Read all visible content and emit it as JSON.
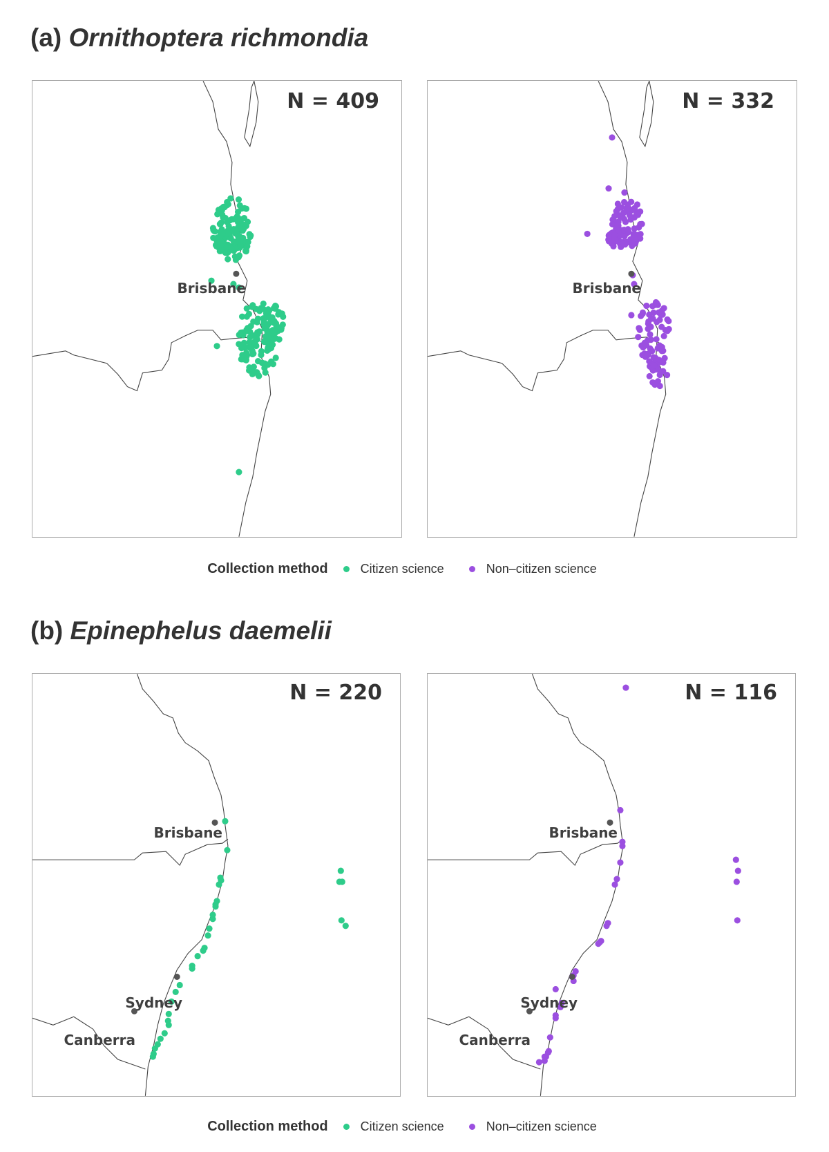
{
  "colors": {
    "citizen": "#2ecc8a",
    "non_citizen": "#9b4fe0",
    "city": "#555555",
    "coast": "#444444"
  },
  "section_a": {
    "label": "(a)",
    "species": "Ornithoptera richmondia",
    "panels": [
      {
        "n_text": "N = 409",
        "method": "Citizen science",
        "color_key": "citizen"
      },
      {
        "n_text": "N = 332",
        "method": "Non–citizen science",
        "color_key": "non_citizen"
      }
    ],
    "cities": [
      "Brisbane"
    ]
  },
  "section_b": {
    "label": "(b)",
    "species": "Epinephelus daemelii",
    "panels": [
      {
        "n_text": "N = 220",
        "method": "Citizen science",
        "color_key": "citizen"
      },
      {
        "n_text": "N = 116",
        "method": "Non–citizen science",
        "color_key": "non_citizen"
      }
    ],
    "cities": [
      "Brisbane",
      "Sydney",
      "Canberra"
    ]
  },
  "legend": {
    "title": "Collection method",
    "items": [
      {
        "label": "Citizen science",
        "color_key": "citizen"
      },
      {
        "label": "Non–citizen science",
        "color_key": "non_citizen"
      }
    ]
  }
}
